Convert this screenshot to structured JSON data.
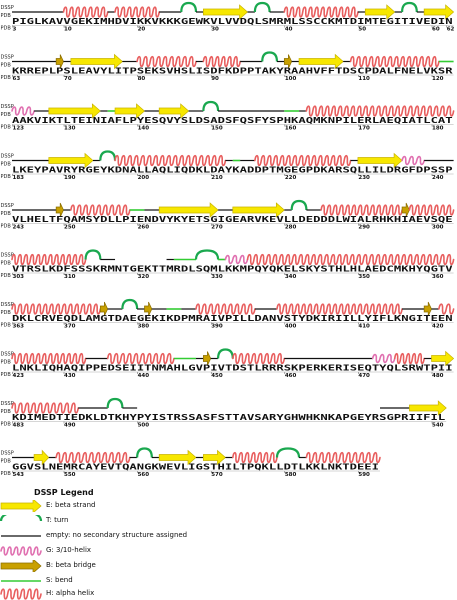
{
  "track_labels": {
    "dssp": "DSSP",
    "pdb": "PDB"
  },
  "colors": {
    "strand": "#f7e700",
    "strand_stroke": "#c9b400",
    "turn": "#1aa84f",
    "coil": "#111111",
    "helix310": "#e070b0",
    "bridge": "#c8a000",
    "bend": "#33cc33",
    "helix": "#e85f5f"
  },
  "rows": [
    {
      "start": 3,
      "sequence": "PIGLKAVVGEKIMHDVIKKVKKKGEWKVLVVDQLSMRMLSSCCKMTDIMTEGITIVEDIN",
      "ticks": [
        {
          "pos": 0,
          "label": "3"
        },
        {
          "pos": 7,
          "label": "10"
        },
        {
          "pos": 17,
          "label": "20"
        },
        {
          "pos": 27,
          "label": "30"
        },
        {
          "pos": 37,
          "label": "40"
        },
        {
          "pos": 47,
          "label": "50"
        },
        {
          "pos": 57,
          "label": "60"
        },
        {
          "pos": 59,
          "label": "62"
        }
      ],
      "segments": [
        {
          "t": "C",
          "s": 0,
          "e": 7
        },
        {
          "t": "H",
          "s": 7,
          "e": 13
        },
        {
          "t": "C",
          "s": 13,
          "e": 14
        },
        {
          "t": "H",
          "s": 14,
          "e": 20
        },
        {
          "t": "C",
          "s": 20,
          "e": 23
        },
        {
          "t": "T",
          "s": 23,
          "e": 25
        },
        {
          "t": "C",
          "s": 25,
          "e": 26
        },
        {
          "t": "E",
          "s": 26,
          "e": 32
        },
        {
          "t": "C",
          "s": 32,
          "e": 33
        },
        {
          "t": "T",
          "s": 33,
          "e": 35
        },
        {
          "t": "C",
          "s": 35,
          "e": 37
        },
        {
          "t": "H",
          "s": 37,
          "e": 47
        },
        {
          "t": "C",
          "s": 47,
          "e": 48
        },
        {
          "t": "E",
          "s": 48,
          "e": 52
        },
        {
          "t": "C",
          "s": 52,
          "e": 53
        },
        {
          "t": "T",
          "s": 53,
          "e": 55
        },
        {
          "t": "C",
          "s": 55,
          "e": 56
        },
        {
          "t": "E",
          "s": 56,
          "e": 60
        }
      ]
    },
    {
      "start": 63,
      "sequence": "KRREPLPSLEAVYLITPSEKSVHSLISDFKDPPTAKYRAAHVFFTDSCPDALFNELVKSR",
      "ticks": [
        {
          "pos": 0,
          "label": "63"
        },
        {
          "pos": 7,
          "label": "70"
        },
        {
          "pos": 17,
          "label": "80"
        },
        {
          "pos": 27,
          "label": "90"
        },
        {
          "pos": 37,
          "label": "100"
        },
        {
          "pos": 47,
          "label": "110"
        },
        {
          "pos": 57,
          "label": "120"
        }
      ],
      "segments": [
        {
          "t": "C",
          "s": 0,
          "e": 6
        },
        {
          "t": "B",
          "s": 6,
          "e": 7
        },
        {
          "t": "C",
          "s": 7,
          "e": 8
        },
        {
          "t": "E",
          "s": 8,
          "e": 15
        },
        {
          "t": "C",
          "s": 15,
          "e": 17
        },
        {
          "t": "H",
          "s": 17,
          "e": 25
        },
        {
          "t": "C",
          "s": 25,
          "e": 26
        },
        {
          "t": "H",
          "s": 26,
          "e": 31
        },
        {
          "t": "C",
          "s": 31,
          "e": 34
        },
        {
          "t": "T",
          "s": 34,
          "e": 36
        },
        {
          "t": "C",
          "s": 36,
          "e": 37
        },
        {
          "t": "B",
          "s": 37,
          "e": 38
        },
        {
          "t": "C",
          "s": 38,
          "e": 39
        },
        {
          "t": "E",
          "s": 39,
          "e": 45
        },
        {
          "t": "C",
          "s": 45,
          "e": 46
        },
        {
          "t": "H",
          "s": 46,
          "e": 58
        },
        {
          "t": "S",
          "s": 58,
          "e": 60
        }
      ]
    },
    {
      "start": 123,
      "sequence": "AAKVIKTLTEINIAFLPYESQVYSLDSADSFQSFYSPHKAQMKNPILERLAEQIATLCAT",
      "ticks": [
        {
          "pos": 0,
          "label": "123"
        },
        {
          "pos": 7,
          "label": "130"
        },
        {
          "pos": 17,
          "label": "140"
        },
        {
          "pos": 27,
          "label": "150"
        },
        {
          "pos": 37,
          "label": "160"
        },
        {
          "pos": 47,
          "label": "170"
        },
        {
          "pos": 57,
          "label": "180"
        }
      ],
      "segments": [
        {
          "t": "G",
          "s": 0,
          "e": 3
        },
        {
          "t": "C",
          "s": 3,
          "e": 5
        },
        {
          "t": "E",
          "s": 5,
          "e": 12
        },
        {
          "t": "C",
          "s": 12,
          "e": 13
        },
        {
          "t": "S",
          "s": 13,
          "e": 14
        },
        {
          "t": "E",
          "s": 14,
          "e": 18
        },
        {
          "t": "C",
          "s": 18,
          "e": 20
        },
        {
          "t": "E",
          "s": 20,
          "e": 24
        },
        {
          "t": "C",
          "s": 24,
          "e": 26
        },
        {
          "t": "T",
          "s": 26,
          "e": 28
        },
        {
          "t": "C",
          "s": 28,
          "e": 37
        },
        {
          "t": "S",
          "s": 37,
          "e": 39
        },
        {
          "t": "C",
          "s": 39,
          "e": 40
        },
        {
          "t": "H",
          "s": 40,
          "e": 60
        }
      ]
    },
    {
      "start": 183,
      "sequence": "LKEYPAVRYRGEYKDNALLAQLIQDKLDAYKADDPTMGEGPDKARSQLLILDRGFDPSSP",
      "ticks": [
        {
          "pos": 0,
          "label": "183"
        },
        {
          "pos": 7,
          "label": "190"
        },
        {
          "pos": 17,
          "label": "200"
        },
        {
          "pos": 27,
          "label": "210"
        },
        {
          "pos": 37,
          "label": "220"
        },
        {
          "pos": 47,
          "label": "230"
        },
        {
          "pos": 57,
          "label": "240"
        }
      ],
      "segments": [
        {
          "t": "C",
          "s": 0,
          "e": 5
        },
        {
          "t": "E",
          "s": 5,
          "e": 11
        },
        {
          "t": "C",
          "s": 11,
          "e": 12
        },
        {
          "t": "T",
          "s": 12,
          "e": 14
        },
        {
          "t": "H",
          "s": 14,
          "e": 29
        },
        {
          "t": "C",
          "s": 29,
          "e": 30
        },
        {
          "t": "S",
          "s": 30,
          "e": 31
        },
        {
          "t": "C",
          "s": 31,
          "e": 33
        },
        {
          "t": "H",
          "s": 33,
          "e": 46
        },
        {
          "t": "C",
          "s": 46,
          "e": 47
        },
        {
          "t": "E",
          "s": 47,
          "e": 53
        },
        {
          "t": "G",
          "s": 53,
          "e": 56
        },
        {
          "t": "C",
          "s": 56,
          "e": 60
        }
      ]
    },
    {
      "start": 243,
      "sequence": "VLHELTFQAMSYDLLPIENDVYKYETSGIGEARVKEVLLDEDDDLWIALRHKHIAEVSQE",
      "ticks": [
        {
          "pos": 0,
          "label": "243"
        },
        {
          "pos": 7,
          "label": "250"
        },
        {
          "pos": 17,
          "label": "260"
        },
        {
          "pos": 27,
          "label": "270"
        },
        {
          "pos": 37,
          "label": "280"
        },
        {
          "pos": 47,
          "label": "290"
        },
        {
          "pos": 57,
          "label": "300"
        }
      ],
      "segments": [
        {
          "t": "C",
          "s": 0,
          "e": 6
        },
        {
          "t": "B",
          "s": 6,
          "e": 7
        },
        {
          "t": "C",
          "s": 7,
          "e": 8
        },
        {
          "t": "H",
          "s": 8,
          "e": 16
        },
        {
          "t": "S",
          "s": 16,
          "e": 18
        },
        {
          "t": "C",
          "s": 18,
          "e": 20
        },
        {
          "t": "E",
          "s": 20,
          "e": 28
        },
        {
          "t": "C",
          "s": 28,
          "e": 30
        },
        {
          "t": "E",
          "s": 30,
          "e": 37
        },
        {
          "t": "C",
          "s": 37,
          "e": 38
        },
        {
          "t": "T",
          "s": 38,
          "e": 40
        },
        {
          "t": "C",
          "s": 40,
          "e": 42
        },
        {
          "t": "H",
          "s": 42,
          "e": 53
        },
        {
          "t": "B",
          "s": 53,
          "e": 54
        },
        {
          "t": "H",
          "s": 54,
          "e": 60
        }
      ]
    },
    {
      "start": 303,
      "sequence": "VTRSLKDFSSSKRMNTGEKTTMRDLSQMLKKMPQYQKELSKYSTHLHLAEDCMKHYQGTV",
      "ticks": [
        {
          "pos": 0,
          "label": "303"
        },
        {
          "pos": 7,
          "label": "310"
        },
        {
          "pos": 17,
          "label": "320"
        },
        {
          "pos": 27,
          "label": "330"
        },
        {
          "pos": 37,
          "label": "340"
        },
        {
          "pos": 47,
          "label": "350"
        },
        {
          "pos": 57,
          "label": "360"
        }
      ],
      "segments": [
        {
          "t": "H",
          "s": 0,
          "e": 10
        },
        {
          "t": "T",
          "s": 10,
          "e": 12
        },
        {
          "t": "C",
          "s": 12,
          "e": 14
        },
        {
          "t": "N",
          "s": 14,
          "e": 21
        },
        {
          "t": "C",
          "s": 21,
          "e": 22
        },
        {
          "t": "S",
          "s": 22,
          "e": 25
        },
        {
          "t": "T",
          "s": 25,
          "e": 28
        },
        {
          "t": "S",
          "s": 28,
          "e": 29
        },
        {
          "t": "G",
          "s": 29,
          "e": 32
        },
        {
          "t": "H",
          "s": 32,
          "e": 60
        }
      ]
    },
    {
      "start": 363,
      "sequence": "DKLCRVEQDLAMGTDAEGEKIKDPMRAIVPILLDANVSTYDKIRIILLYIFLKNGITEEN",
      "ticks": [
        {
          "pos": 0,
          "label": "363"
        },
        {
          "pos": 7,
          "label": "370"
        },
        {
          "pos": 17,
          "label": "380"
        },
        {
          "pos": 27,
          "label": "390"
        },
        {
          "pos": 37,
          "label": "400"
        },
        {
          "pos": 47,
          "label": "410"
        },
        {
          "pos": 57,
          "label": "420"
        }
      ],
      "segments": [
        {
          "t": "H",
          "s": 0,
          "e": 12
        },
        {
          "t": "B",
          "s": 12,
          "e": 13
        },
        {
          "t": "C",
          "s": 13,
          "e": 15
        },
        {
          "t": "T",
          "s": 15,
          "e": 17
        },
        {
          "t": "C",
          "s": 17,
          "e": 18
        },
        {
          "t": "B",
          "s": 18,
          "e": 19
        },
        {
          "t": "C",
          "s": 19,
          "e": 21
        },
        {
          "t": "S",
          "s": 21,
          "e": 23
        },
        {
          "t": "C",
          "s": 23,
          "e": 25
        },
        {
          "t": "H",
          "s": 25,
          "e": 33
        },
        {
          "t": "C",
          "s": 33,
          "e": 36
        },
        {
          "t": "H",
          "s": 36,
          "e": 53
        },
        {
          "t": "C",
          "s": 53,
          "e": 56
        },
        {
          "t": "B",
          "s": 56,
          "e": 57
        },
        {
          "t": "C",
          "s": 57,
          "e": 58
        },
        {
          "t": "H",
          "s": 58,
          "e": 60
        }
      ]
    },
    {
      "start": 423,
      "sequence": "LNKLIQHAQIPPEDSEIITNMAHLGVPIVTDSTLRRRSKPERKERISEQTYQLSRWTPII",
      "ticks": [
        {
          "pos": 0,
          "label": "423"
        },
        {
          "pos": 7,
          "label": "430"
        },
        {
          "pos": 17,
          "label": "440"
        },
        {
          "pos": 27,
          "label": "450"
        },
        {
          "pos": 37,
          "label": "460"
        },
        {
          "pos": 47,
          "label": "470"
        },
        {
          "pos": 57,
          "label": "480"
        }
      ],
      "segments": [
        {
          "t": "H",
          "s": 0,
          "e": 10
        },
        {
          "t": "C",
          "s": 10,
          "e": 13
        },
        {
          "t": "H",
          "s": 13,
          "e": 22
        },
        {
          "t": "S",
          "s": 22,
          "e": 25
        },
        {
          "t": "C",
          "s": 25,
          "e": 26
        },
        {
          "t": "B",
          "s": 26,
          "e": 27
        },
        {
          "t": "C",
          "s": 27,
          "e": 28
        },
        {
          "t": "T",
          "s": 28,
          "e": 30
        },
        {
          "t": "H",
          "s": 30,
          "e": 37
        },
        {
          "t": "C",
          "s": 37,
          "e": 49
        },
        {
          "t": "G",
          "s": 49,
          "e": 52
        },
        {
          "t": "H",
          "s": 52,
          "e": 56
        },
        {
          "t": "C",
          "s": 56,
          "e": 57
        },
        {
          "t": "E",
          "s": 57,
          "e": 60
        }
      ]
    },
    {
      "start": 483,
      "sequence": "KDIMEDTIEDKLDTKHYPYISTRSSASFSTTAVSARYGHWHKNKAPGEYRSGPRIIFIL",
      "ticks": [
        {
          "pos": 0,
          "label": "483"
        },
        {
          "pos": 7,
          "label": "490"
        },
        {
          "pos": 17,
          "label": "500"
        },
        {
          "pos": 57,
          "label": "540"
        }
      ],
      "segments": [
        {
          "t": "H",
          "s": 0,
          "e": 9
        },
        {
          "t": "C",
          "s": 9,
          "e": 13
        },
        {
          "t": "T",
          "s": 13,
          "e": 15
        },
        {
          "t": "C",
          "s": 15,
          "e": 17
        },
        {
          "t": "N",
          "s": 17,
          "e": 50
        },
        {
          "t": "C",
          "s": 50,
          "e": 54
        },
        {
          "t": "E",
          "s": 54,
          "e": 59
        }
      ]
    },
    {
      "start": 543,
      "sequence": "GGVSLNEMRCAYEVTQANGKWEVLIGSTHILTPQKLLDTLKKLNKTDEEI",
      "ticks": [
        {
          "pos": 0,
          "label": "543"
        },
        {
          "pos": 7,
          "label": "550"
        },
        {
          "pos": 17,
          "label": "560"
        },
        {
          "pos": 27,
          "label": "570"
        },
        {
          "pos": 37,
          "label": "580"
        },
        {
          "pos": 47,
          "label": "590"
        }
      ],
      "segments": [
        {
          "t": "C",
          "s": 0,
          "e": 3
        },
        {
          "t": "E",
          "s": 3,
          "e": 5
        },
        {
          "t": "C",
          "s": 5,
          "e": 6
        },
        {
          "t": "H",
          "s": 6,
          "e": 16
        },
        {
          "t": "C",
          "s": 16,
          "e": 17
        },
        {
          "t": "T",
          "s": 17,
          "e": 19
        },
        {
          "t": "C",
          "s": 19,
          "e": 20
        },
        {
          "t": "E",
          "s": 20,
          "e": 25
        },
        {
          "t": "C",
          "s": 25,
          "e": 26
        },
        {
          "t": "E",
          "s": 26,
          "e": 29
        },
        {
          "t": "C",
          "s": 29,
          "e": 30
        },
        {
          "t": "H",
          "s": 30,
          "e": 36
        },
        {
          "t": "T",
          "s": 36,
          "e": 39
        },
        {
          "t": "C",
          "s": 39,
          "e": 40
        },
        {
          "t": "H",
          "s": 40,
          "e": 50
        }
      ]
    }
  ],
  "legend": {
    "title": "DSSP Legend",
    "items": [
      {
        "type": "E",
        "icon": "beta-strand-arrow-icon",
        "label": "E: beta strand"
      },
      {
        "type": "T",
        "icon": "turn-arc-icon",
        "label": "T: turn"
      },
      {
        "type": "C",
        "icon": "coil-line-icon",
        "label": "empty: no secondary structure assigned"
      },
      {
        "type": "G",
        "icon": "helix-310-icon",
        "label": "G: 3/10-helix"
      },
      {
        "type": "B",
        "icon": "beta-bridge-arrow-icon",
        "label": "B: beta bridge"
      },
      {
        "type": "S",
        "icon": "bend-line-icon",
        "label": "S: bend"
      },
      {
        "type": "H",
        "icon": "alpha-helix-icon",
        "label": "H: alpha helix"
      }
    ]
  }
}
